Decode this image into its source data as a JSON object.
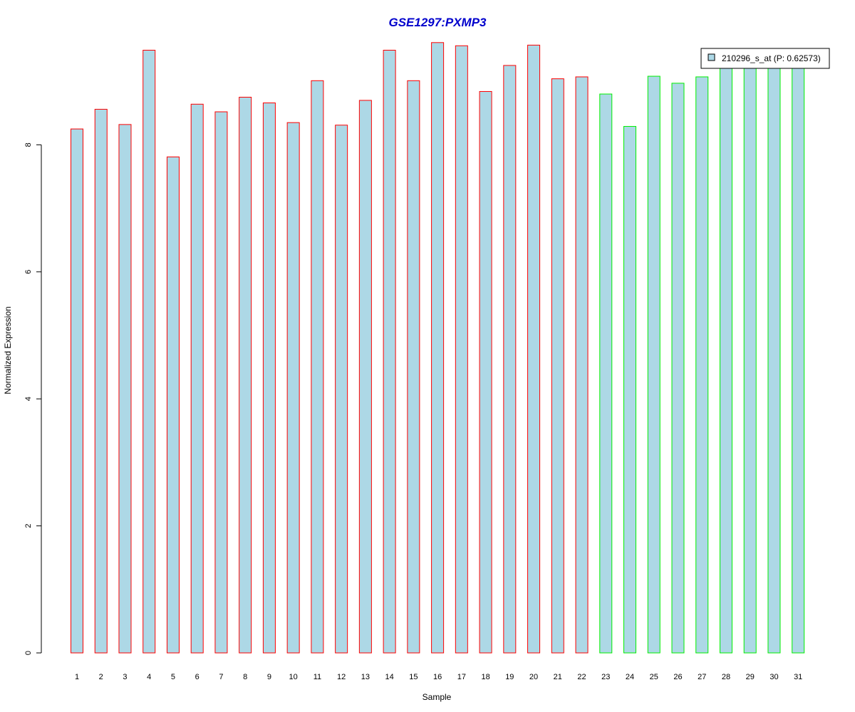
{
  "chart_data": {
    "type": "bar",
    "title": "GSE1297:PXMP3",
    "xlabel": "Sample",
    "ylabel": "Normalized Expression",
    "ylim": [
      0,
      9.6
    ],
    "yticks": [
      0,
      2,
      4,
      6,
      8
    ],
    "categories": [
      "1",
      "2",
      "3",
      "4",
      "5",
      "6",
      "7",
      "8",
      "9",
      "10",
      "11",
      "12",
      "13",
      "14",
      "15",
      "16",
      "17",
      "18",
      "19",
      "20",
      "21",
      "22",
      "23",
      "24",
      "25",
      "26",
      "27",
      "28",
      "29",
      "30",
      "31"
    ],
    "series": [
      {
        "name": "210296_s_at (P: 0.62573)",
        "fill": "#add8e6",
        "values": [
          8.25,
          8.56,
          8.32,
          9.49,
          7.81,
          8.64,
          8.52,
          8.75,
          8.66,
          8.35,
          9.01,
          8.31,
          8.7,
          9.49,
          9.01,
          9.61,
          9.56,
          8.84,
          9.25,
          9.57,
          9.04,
          9.07,
          8.8,
          8.29,
          9.08,
          8.97,
          9.07,
          9.3,
          9.3,
          9.3,
          9.3
        ]
      }
    ],
    "group_colors": [
      "#ff0000",
      "#ff0000",
      "#ff0000",
      "#ff0000",
      "#ff0000",
      "#ff0000",
      "#ff0000",
      "#ff0000",
      "#ff0000",
      "#ff0000",
      "#ff0000",
      "#ff0000",
      "#ff0000",
      "#ff0000",
      "#ff0000",
      "#ff0000",
      "#ff0000",
      "#ff0000",
      "#ff0000",
      "#ff0000",
      "#ff0000",
      "#ff0000",
      "#00ee00",
      "#00ee00",
      "#00ee00",
      "#00ee00",
      "#00ee00",
      "#00ee00",
      "#00ee00",
      "#00ee00",
      "#00ee00"
    ],
    "grid": false,
    "legend_placement": "top-right"
  }
}
